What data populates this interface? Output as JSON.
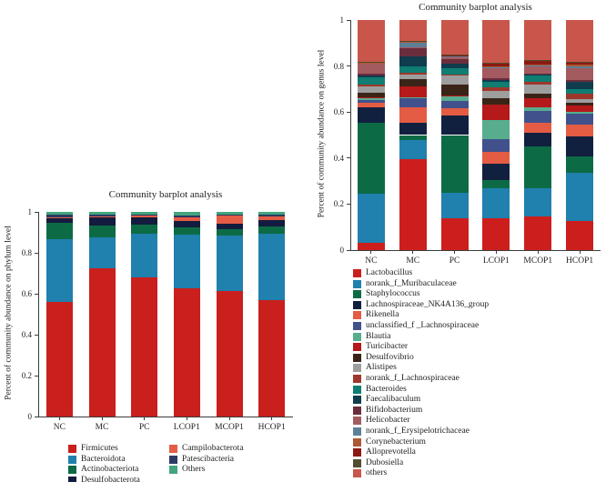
{
  "chart_data": [
    {
      "type": "bar",
      "stacked": true,
      "title": "Community barplot analysis",
      "ylabel": "Percent of community abundance on phylum level",
      "xlabel": "",
      "categories": [
        "NC",
        "MC",
        "PC",
        "LCOP1",
        "MCOP1",
        "HCOP1"
      ],
      "ytick_labels": [
        "1",
        "0.8",
        "0.6",
        "0.4",
        "0.2",
        "0"
      ],
      "yticks": [
        1,
        0.8,
        0.6,
        0.4,
        0.2,
        0
      ],
      "ylim": [
        0,
        1
      ],
      "grid": false,
      "legend_position": "bottom-two-columns",
      "series": [
        {
          "name": "Firmicutes",
          "color": "#c9201d",
          "values": [
            0.56,
            0.725,
            0.68,
            0.625,
            0.615,
            0.57
          ]
        },
        {
          "name": "Bacteroidota",
          "color": "#2080ae",
          "values": [
            0.305,
            0.15,
            0.215,
            0.265,
            0.27,
            0.325
          ]
        },
        {
          "name": "Actinobacteriota",
          "color": "#0c6b45",
          "values": [
            0.08,
            0.06,
            0.042,
            0.035,
            0.03,
            0.035
          ]
        },
        {
          "name": "Desulfobacterota",
          "color": "#131c3e",
          "values": [
            0.022,
            0.04,
            0.038,
            0.03,
            0.028,
            0.03
          ]
        },
        {
          "name": "Campilobacterota",
          "color": "#e45c44",
          "values": [
            0.008,
            0.004,
            0.008,
            0.02,
            0.04,
            0.018
          ]
        },
        {
          "name": "Patescibacteria",
          "color": "#2c3a63",
          "values": [
            0.01,
            0.008,
            0.004,
            0.007,
            0.005,
            0.007
          ]
        },
        {
          "name": "Others",
          "color": "#42a57d",
          "values": [
            0.015,
            0.013,
            0.013,
            0.018,
            0.012,
            0.015
          ]
        }
      ]
    },
    {
      "type": "bar",
      "stacked": true,
      "title": "Community barplot analysis",
      "ylabel": "Percent of community abundance on genus level",
      "xlabel": "",
      "categories": [
        "NC",
        "MC",
        "PC",
        "LCOP1",
        "MCOP1",
        "HCOP1"
      ],
      "ytick_labels": [
        "1",
        "0.8",
        "0.6",
        "0.4",
        "0.2",
        "0"
      ],
      "yticks": [
        1,
        0.8,
        0.6,
        0.4,
        0.2,
        0
      ],
      "ylim": [
        0,
        1
      ],
      "grid": false,
      "legend_position": "bottom-single-column",
      "series": [
        {
          "name": "Lactobacillus",
          "color": "#cc1f1d",
          "values": [
            0.03,
            0.395,
            0.14,
            0.14,
            0.145,
            0.125
          ]
        },
        {
          "name": "norank_f_Muribaculaceae",
          "color": "#2080ae",
          "values": [
            0.215,
            0.085,
            0.11,
            0.13,
            0.125,
            0.21
          ]
        },
        {
          "name": "Staphylococcus",
          "color": "#0c6b45",
          "values": [
            0.31,
            0.02,
            0.25,
            0.033,
            0.182,
            0.073
          ]
        },
        {
          "name": "Lachnospiraceae_NK4A136_group",
          "color": "#12203f",
          "values": [
            0.065,
            0.055,
            0.086,
            0.073,
            0.058,
            0.086
          ]
        },
        {
          "name": "Rikenella",
          "color": "#e45c44",
          "values": [
            0.02,
            0.065,
            0.032,
            0.052,
            0.045,
            0.05
          ]
        },
        {
          "name": "unclassified_f _Lachnospiraceae",
          "color": "#41518c",
          "values": [
            0.013,
            0.04,
            0.032,
            0.055,
            0.05,
            0.049
          ]
        },
        {
          "name": "Blautia",
          "color": "#57ad8e",
          "values": [
            0.008,
            0.005,
            0.018,
            0.082,
            0.015,
            0.009
          ]
        },
        {
          "name": "Turicibacter",
          "color": "#b5191a",
          "values": [
            0.004,
            0.045,
            0.005,
            0.067,
            0.04,
            0.026
          ]
        },
        {
          "name": "Desulfovibrio",
          "color": "#3a2417",
          "values": [
            0.02,
            0.034,
            0.045,
            0.028,
            0.02,
            0.011
          ]
        },
        {
          "name": "Alistipes",
          "color": "#9e9e9e",
          "values": [
            0.025,
            0.02,
            0.04,
            0.032,
            0.038,
            0.016
          ]
        },
        {
          "name": "norank_f_Lachnospiraceae",
          "color": "#9e372b",
          "values": [
            0.008,
            0.006,
            0.006,
            0.016,
            0.012,
            0.024
          ]
        },
        {
          "name": "Bacteroides",
          "color": "#0f7d72",
          "values": [
            0.032,
            0.03,
            0.026,
            0.022,
            0.028,
            0.02
          ]
        },
        {
          "name": "Faecalibaculum",
          "color": "#103c4e",
          "values": [
            0.01,
            0.043,
            0.02,
            0.008,
            0.004,
            0.031
          ]
        },
        {
          "name": "Bifidobacterium",
          "color": "#6b2d3d",
          "values": [
            0.007,
            0.033,
            0.02,
            0.01,
            0.004,
            0.008
          ]
        },
        {
          "name": "Helicobacter",
          "color": "#a35b60",
          "values": [
            0.045,
            0.004,
            0.008,
            0.042,
            0.032,
            0.052
          ]
        },
        {
          "name": "norank_f_Erysipelotrichaceae",
          "color": "#5d8097",
          "values": [
            0.002,
            0.022,
            0.003,
            0.005,
            0.004,
            0.01
          ]
        },
        {
          "name": "Corynebacterium",
          "color": "#ad5934",
          "values": [
            0.002,
            0.004,
            0.004,
            0.005,
            0.004,
            0.005
          ]
        },
        {
          "name": "Alloprevotella",
          "color": "#8c1a12",
          "values": [
            0.002,
            0.002,
            0.002,
            0.01,
            0.015,
            0.01
          ]
        },
        {
          "name": "Dubosiella",
          "color": "#514d31",
          "values": [
            0.002,
            0.002,
            0.002,
            0.005,
            0.004,
            0.005
          ]
        },
        {
          "name": "others",
          "color": "#c9564a",
          "values": [
            0.18,
            0.09,
            0.151,
            0.185,
            0.175,
            0.18
          ]
        }
      ]
    }
  ]
}
